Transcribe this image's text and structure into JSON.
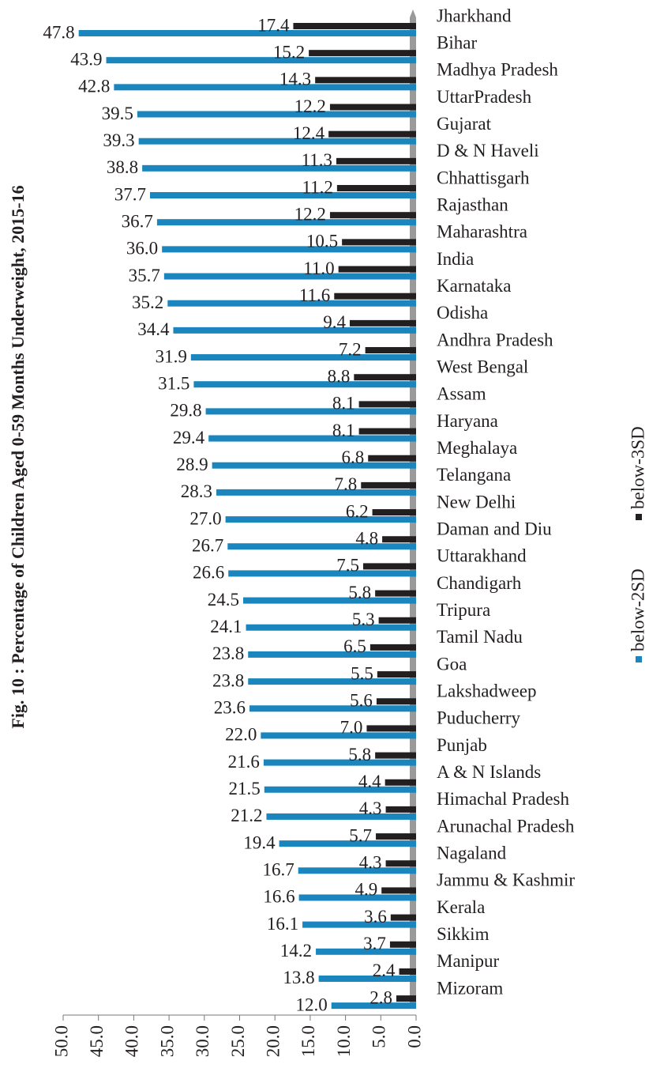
{
  "chart_data": {
    "type": "bar",
    "orientation": "horizontal",
    "xaxis_reversed": true,
    "title": "Fig. 10 : Percentage of Children Aged 0-59 Months Underweight, 2015-16",
    "categories": [
      "Jharkhand",
      "Bihar",
      "Madhya Pradesh",
      "UttarPradesh",
      "Gujarat",
      "D & N Haveli",
      "Chhattisgarh",
      "Rajasthan",
      "Maharashtra",
      "India",
      "Karnataka",
      "Odisha",
      "Andhra Pradesh",
      "West Bengal",
      "Assam",
      "Haryana",
      "Meghalaya",
      "Telangana",
      "New Delhi",
      "Daman and Diu",
      "Uttarakhand",
      "Chandigarh",
      "Tripura",
      "Tamil Nadu",
      "Goa",
      "Lakshadweep",
      "Puducherry",
      "Punjab",
      "A & N Islands",
      "Himachal Pradesh",
      "Arunachal Pradesh",
      "Nagaland",
      "Jammu & Kashmir",
      "Kerala",
      "Sikkim",
      "Manipur",
      "Mizoram"
    ],
    "series": [
      {
        "name": "below-2SD",
        "color": "#1b86bd",
        "values": [
          47.8,
          43.9,
          42.8,
          39.5,
          39.3,
          38.8,
          37.7,
          36.7,
          36.0,
          35.7,
          35.2,
          34.4,
          31.9,
          31.5,
          29.8,
          29.4,
          28.9,
          28.3,
          27.0,
          26.7,
          26.6,
          24.5,
          24.1,
          23.8,
          23.8,
          23.6,
          22.0,
          21.6,
          21.5,
          21.2,
          19.4,
          16.7,
          16.6,
          16.1,
          14.2,
          13.8,
          12.0
        ],
        "value_labels": [
          "47.8",
          "43.9",
          "42.8",
          "39.5",
          "39.3",
          "38.8",
          "37.7",
          "36.7",
          "36.0",
          "35.7",
          "35.2",
          "34.4",
          "31.9",
          "31.5",
          "29.8",
          "29.4",
          "28.9",
          "28.3",
          "27.0",
          "26.7",
          "26.6",
          "24.5",
          "24.1",
          "23.8",
          "23.8",
          "23.6",
          "22.0",
          "21.6",
          "21.5",
          "21.2",
          "19.4",
          "16.7",
          "16.6",
          "16.1",
          "14.2",
          "13.8",
          "12.0"
        ]
      },
      {
        "name": "below-3SD",
        "color": "#231f20",
        "values": [
          17.4,
          15.2,
          14.3,
          12.2,
          12.4,
          11.3,
          11.2,
          12.2,
          10.5,
          11.0,
          11.6,
          9.4,
          7.2,
          8.8,
          8.1,
          8.1,
          6.8,
          7.8,
          6.2,
          4.8,
          7.5,
          5.8,
          5.3,
          6.5,
          5.5,
          5.6,
          7.0,
          5.8,
          4.4,
          4.3,
          5.7,
          4.3,
          4.9,
          3.6,
          3.7,
          2.4,
          2.8
        ],
        "value_labels": [
          "17.4",
          "15.2",
          "14.3",
          "12.2",
          "12.4",
          "11.3",
          "11.2",
          "12.2",
          "10.5",
          "11.0",
          "11.6",
          "9.4",
          "7.2",
          "8.8",
          "8.1",
          "8.1",
          "6.8",
          "7.8",
          "6.2",
          "4.8",
          "7.5",
          "5.8",
          "5.3",
          "6.5",
          "5.5",
          "5.6",
          "7.0",
          "5.8",
          "4.4",
          "4.3",
          "5.7",
          "4.3",
          "4.9",
          "3.6",
          "3.7",
          "2.4",
          "2.8"
        ]
      }
    ],
    "xlim": [
      0,
      50
    ],
    "xticks": [
      {
        "value": 0,
        "label": "0.0"
      },
      {
        "value": 5,
        "label": "5.0"
      },
      {
        "value": 10,
        "label": "10.0"
      },
      {
        "value": 15,
        "label": "15.0"
      },
      {
        "value": 20,
        "label": "20.0"
      },
      {
        "value": 25,
        "label": "25.0"
      },
      {
        "value": 30,
        "label": "30.0"
      },
      {
        "value": 35,
        "label": "35.0"
      },
      {
        "value": 40,
        "label": "40.0"
      },
      {
        "value": 45,
        "label": "45.0"
      },
      {
        "value": 50,
        "label": "50.0"
      }
    ],
    "legend": "right"
  }
}
